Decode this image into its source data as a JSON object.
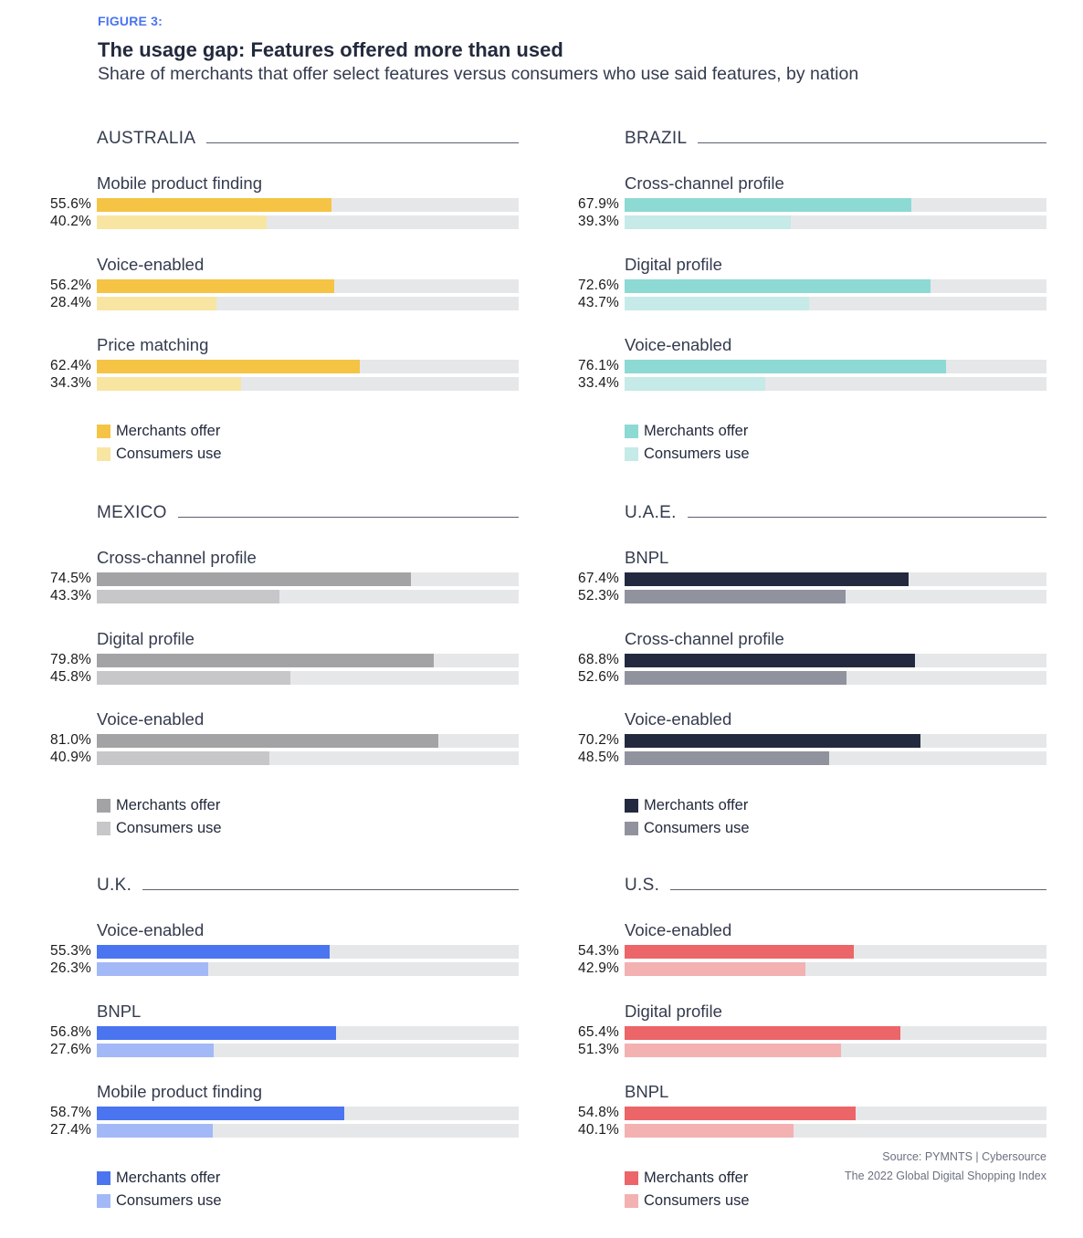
{
  "figure_label": "FIGURE 3:",
  "title": "The usage gap: Features offered more than used",
  "subtitle": "Share of merchants that offer select features versus consumers who use said features, by nation",
  "legend": {
    "offer_label": "Merchants offer",
    "use_label": "Consumers use"
  },
  "source": {
    "line1": "Source:  PYMNTS  |  Cybersource",
    "line2": "The 2022 Global Digital Shopping Index"
  },
  "chart_data": {
    "type": "bar",
    "orientation": "horizontal",
    "title": "The usage gap: Features offered more than used",
    "subtitle": "Share of merchants that offer select features versus consumers who use said features, by nation",
    "xlim": [
      0,
      100
    ],
    "unit": "%",
    "series_names": [
      "Merchants offer",
      "Consumers use"
    ],
    "panels": [
      {
        "country": "AUSTRALIA",
        "colors": {
          "offer": "#f5c445",
          "use": "#f9e5a2"
        },
        "features": [
          {
            "name": "Mobile product finding",
            "offer": 55.6,
            "use": 40.2,
            "offer_label": "55.6%",
            "use_label": "40.2%"
          },
          {
            "name": "Voice-enabled",
            "offer": 56.2,
            "use": 28.4,
            "offer_label": "56.2%",
            "use_label": "28.4%"
          },
          {
            "name": "Price matching",
            "offer": 62.4,
            "use": 34.3,
            "offer_label": "62.4%",
            "use_label": "34.3%"
          }
        ]
      },
      {
        "country": "BRAZIL",
        "colors": {
          "offer": "#8dd9d4",
          "use": "#c5eae8"
        },
        "features": [
          {
            "name": "Cross-channel profile",
            "offer": 67.9,
            "use": 39.3,
            "offer_label": "67.9%",
            "use_label": "39.3%"
          },
          {
            "name": "Digital profile",
            "offer": 72.6,
            "use": 43.7,
            "offer_label": "72.6%",
            "use_label": "43.7%"
          },
          {
            "name": "Voice-enabled",
            "offer": 76.1,
            "use": 33.4,
            "offer_label": "76.1%",
            "use_label": "33.4%"
          }
        ]
      },
      {
        "country": "MEXICO",
        "colors": {
          "offer": "#a3a2a4",
          "use": "#c7c7c9"
        },
        "features": [
          {
            "name": "Cross-channel profile",
            "offer": 74.5,
            "use": 43.3,
            "offer_label": "74.5%",
            "use_label": "43.3%"
          },
          {
            "name": "Digital profile",
            "offer": 79.8,
            "use": 45.8,
            "offer_label": "79.8%",
            "use_label": "45.8%"
          },
          {
            "name": "Voice-enabled",
            "offer": 81.0,
            "use": 40.9,
            "offer_label": "81.0%",
            "use_label": "40.9%"
          }
        ]
      },
      {
        "country": "U.A.E.",
        "colors": {
          "offer": "#232a3f",
          "use": "#90929e"
        },
        "features": [
          {
            "name": "BNPL",
            "offer": 67.4,
            "use": 52.3,
            "offer_label": "67.4%",
            "use_label": "52.3%"
          },
          {
            "name": "Cross-channel profile",
            "offer": 68.8,
            "use": 52.6,
            "offer_label": "68.8%",
            "use_label": "52.6%"
          },
          {
            "name": "Voice-enabled",
            "offer": 70.2,
            "use": 48.5,
            "offer_label": "70.2%",
            "use_label": "48.5%"
          }
        ]
      },
      {
        "country": "U.K.",
        "colors": {
          "offer": "#4a74f0",
          "use": "#a3b8f6"
        },
        "features": [
          {
            "name": "Voice-enabled",
            "offer": 55.3,
            "use": 26.3,
            "offer_label": "55.3%",
            "use_label": "26.3%"
          },
          {
            "name": "BNPL",
            "offer": 56.8,
            "use": 27.6,
            "offer_label": "56.8%",
            "use_label": "27.6%"
          },
          {
            "name": "Mobile product finding",
            "offer": 58.7,
            "use": 27.4,
            "offer_label": "58.7%",
            "use_label": "27.4%"
          }
        ]
      },
      {
        "country": "U.S.",
        "colors": {
          "offer": "#ec6568",
          "use": "#f3b1b2"
        },
        "features": [
          {
            "name": "Voice-enabled",
            "offer": 54.3,
            "use": 42.9,
            "offer_label": "54.3%",
            "use_label": "42.9%"
          },
          {
            "name": "Digital profile",
            "offer": 65.4,
            "use": 51.3,
            "offer_label": "65.4%",
            "use_label": "51.3%"
          },
          {
            "name": "BNPL",
            "offer": 54.8,
            "use": 40.1,
            "offer_label": "54.8%",
            "use_label": "40.1%"
          }
        ]
      }
    ]
  }
}
